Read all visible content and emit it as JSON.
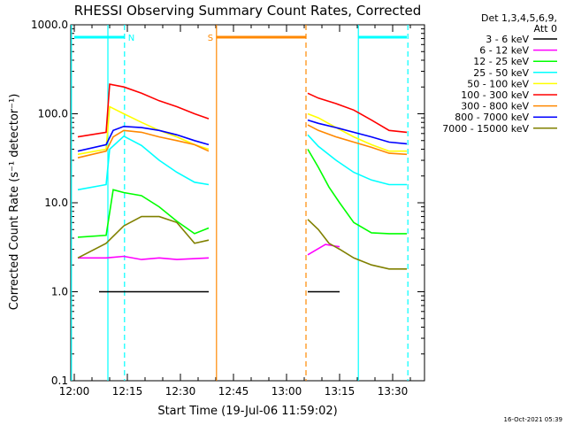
{
  "chart_data": {
    "type": "line",
    "title": "RHESSI Observing Summary Count Rates, Corrected",
    "xlabel": "Start Time (19-Jul-06 11:59:02)",
    "ylabel": "Corrected Count Rate (s⁻¹ detector⁻¹)",
    "y_scale": "log",
    "ylim": [
      0.1,
      1000
    ],
    "y_ticks": [
      "0.1",
      "1.0",
      "10.0",
      "100.0",
      "1000.0"
    ],
    "x_range_minutes": [
      0,
      100
    ],
    "x_ticks": [
      {
        "label": "12:00",
        "minute": 1
      },
      {
        "label": "12:15",
        "minute": 16
      },
      {
        "label": "12:30",
        "minute": 31
      },
      {
        "label": "12:45",
        "minute": 46
      },
      {
        "label": "13:00",
        "minute": 61
      },
      {
        "label": "13:15",
        "minute": 76
      },
      {
        "label": "13:30",
        "minute": 91
      }
    ],
    "legend": {
      "placement": "outside-right",
      "header": [
        "Det 1,3,4,5,6,9,",
        "Att 0"
      ]
    },
    "series": [
      {
        "name": "3 - 6 keV",
        "color": "#000000",
        "x": [
          8,
          20,
          30,
          39,
          67,
          76
        ],
        "y": [
          1.0,
          1.0,
          1.0,
          1.0,
          1.0,
          1.0
        ]
      },
      {
        "name": "6 - 12 keV",
        "color": "#ff00ff",
        "x": [
          2,
          10,
          15,
          20,
          25,
          30,
          39,
          67,
          72,
          76
        ],
        "y": [
          2.4,
          2.4,
          2.5,
          2.3,
          2.4,
          2.3,
          2.4,
          2.6,
          3.4,
          3.2
        ]
      },
      {
        "name": "12 - 25 keV",
        "color": "#00ff00",
        "x": [
          2,
          10,
          12,
          15,
          20,
          25,
          30,
          35,
          39,
          67,
          70,
          73,
          76,
          80,
          85,
          90,
          95
        ],
        "y": [
          4.1,
          4.3,
          14,
          13,
          12,
          9,
          6.2,
          4.5,
          5.2,
          40,
          25,
          15,
          10,
          6,
          4.6,
          4.5,
          4.5
        ]
      },
      {
        "name": "25 - 50 keV",
        "color": "#00ffff",
        "x": [
          2,
          10,
          11,
          15,
          20,
          25,
          30,
          35,
          39,
          67,
          70,
          75,
          80,
          85,
          90,
          95
        ],
        "y": [
          14,
          16,
          40,
          56,
          44,
          30,
          22,
          17,
          16,
          58,
          43,
          30,
          22,
          18,
          16,
          16
        ]
      },
      {
        "name": "50 - 100 keV",
        "color": "#ffff00",
        "x": [
          2,
          10,
          11,
          15,
          20,
          25,
          30,
          35,
          39,
          67,
          70,
          75,
          80,
          85,
          90,
          95
        ],
        "y": [
          35,
          40,
          120,
          100,
          80,
          65,
          55,
          45,
          40,
          100,
          90,
          70,
          55,
          45,
          38,
          38
        ]
      },
      {
        "name": "100 - 300 keV",
        "color": "#ff0000",
        "x": [
          2,
          10,
          11,
          15,
          20,
          25,
          30,
          35,
          39,
          67,
          70,
          75,
          80,
          85,
          90,
          95
        ],
        "y": [
          55,
          62,
          215,
          200,
          170,
          140,
          120,
          100,
          88,
          170,
          150,
          130,
          110,
          85,
          65,
          62
        ]
      },
      {
        "name": "300 - 800 keV",
        "color": "#ff8800",
        "x": [
          2,
          10,
          12,
          15,
          20,
          25,
          30,
          35,
          39,
          67,
          70,
          75,
          80,
          85,
          90,
          95
        ],
        "y": [
          32,
          38,
          55,
          65,
          62,
          55,
          50,
          45,
          38,
          75,
          65,
          55,
          48,
          42,
          36,
          35
        ]
      },
      {
        "name": "800 - 7000 keV",
        "color": "#0000ff",
        "x": [
          2,
          10,
          12,
          15,
          20,
          25,
          30,
          35,
          39,
          67,
          70,
          75,
          80,
          85,
          90,
          95
        ],
        "y": [
          38,
          45,
          65,
          72,
          70,
          65,
          58,
          50,
          45,
          85,
          78,
          70,
          62,
          55,
          48,
          46
        ]
      },
      {
        "name": "7000 - 15000 keV",
        "color": "#808000",
        "x": [
          2,
          10,
          15,
          20,
          25,
          30,
          35,
          39,
          67,
          70,
          73,
          76,
          80,
          85,
          90,
          95
        ],
        "y": [
          2.4,
          3.5,
          5.5,
          7,
          7,
          6,
          3.5,
          3.8,
          6.5,
          5,
          3.5,
          3,
          2.4,
          2,
          1.8,
          1.8
        ]
      }
    ],
    "annotations": [
      {
        "label": "N",
        "color": "#00ffff",
        "span_min": [
          1,
          15.2
        ]
      },
      {
        "label": "S",
        "color": "#ff8800",
        "span_min": [
          41.2,
          66.5
        ]
      },
      {
        "label": "",
        "color": "#00ffff",
        "span_min": [
          81.3,
          95
        ]
      }
    ],
    "vertical_lines": [
      {
        "minute": 0.2,
        "color": "#00ffff",
        "style": "solid"
      },
      {
        "minute": 10.5,
        "color": "#00ffff",
        "style": "solid"
      },
      {
        "minute": 15.2,
        "color": "#00ffff",
        "style": "dashed"
      },
      {
        "minute": 41.2,
        "color": "#ff8800",
        "style": "solid"
      },
      {
        "minute": 66.5,
        "color": "#ff8800",
        "style": "dashed"
      },
      {
        "minute": 81.3,
        "color": "#00ffff",
        "style": "solid"
      },
      {
        "minute": 95.3,
        "color": "#00ffff",
        "style": "dashed"
      }
    ]
  },
  "footer_timestamp": "16-Oct-2021 05:39"
}
